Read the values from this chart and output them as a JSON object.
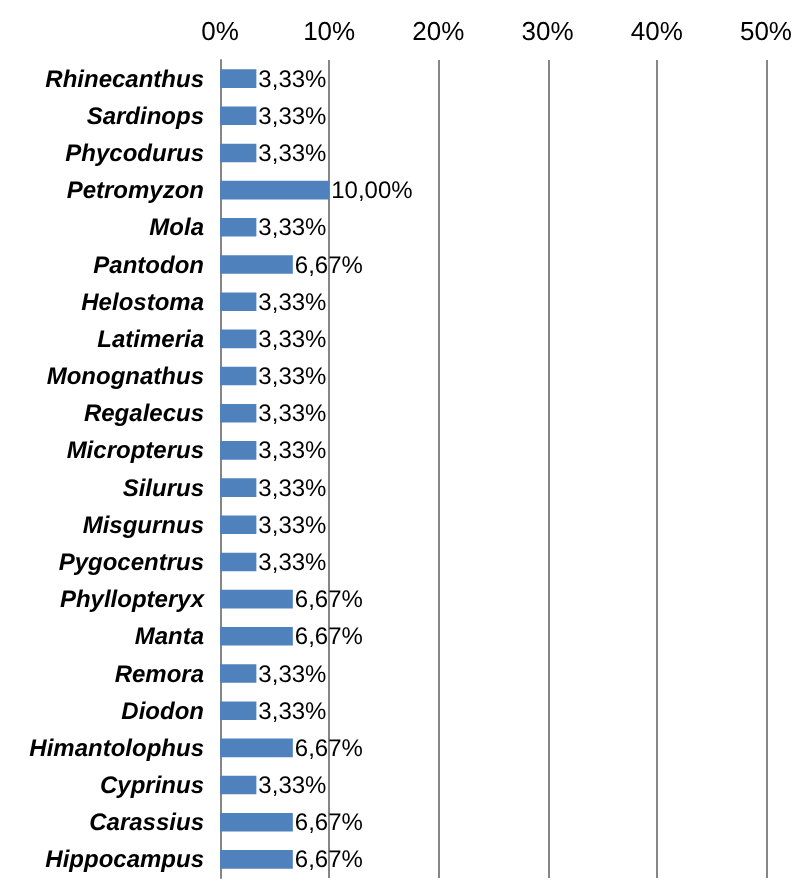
{
  "chart_data": {
    "type": "bar",
    "orientation": "horizontal",
    "categories": [
      "Rhinecanthus",
      "Sardinops",
      "Phycodurus",
      "Petromyzon",
      "Mola",
      "Pantodon",
      "Helostoma",
      "Latimeria",
      "Monognathus",
      "Regalecus",
      "Micropterus",
      "Silurus",
      "Misgurnus",
      "Pygocentrus",
      "Phyllopteryx",
      "Manta",
      "Remora",
      "Diodon",
      "Himantolophus",
      "Cyprinus",
      "Carassius",
      "Hippocampus"
    ],
    "values": [
      3.33,
      3.33,
      3.33,
      10.0,
      3.33,
      6.67,
      3.33,
      3.33,
      3.33,
      3.33,
      3.33,
      3.33,
      3.33,
      3.33,
      6.67,
      6.67,
      3.33,
      3.33,
      6.67,
      3.33,
      6.67,
      6.67
    ],
    "value_labels": [
      "3,33%",
      "3,33%",
      "3,33%",
      "10,00%",
      "3,33%",
      "6,67%",
      "3,33%",
      "3,33%",
      "3,33%",
      "3,33%",
      "3,33%",
      "3,33%",
      "3,33%",
      "3,33%",
      "6,67%",
      "6,67%",
      "3,33%",
      "3,33%",
      "6,67%",
      "3,33%",
      "6,67%",
      "6,67%"
    ],
    "color": "#4f81bd",
    "xlim": [
      0,
      50
    ],
    "xticks": [
      {
        "value": 0,
        "label": "0%"
      },
      {
        "value": 10,
        "label": "10%"
      },
      {
        "value": 20,
        "label": "20%"
      },
      {
        "value": 30,
        "label": "30%"
      },
      {
        "value": 40,
        "label": "40%"
      },
      {
        "value": 50,
        "label": "50%"
      }
    ],
    "grid": "x"
  }
}
